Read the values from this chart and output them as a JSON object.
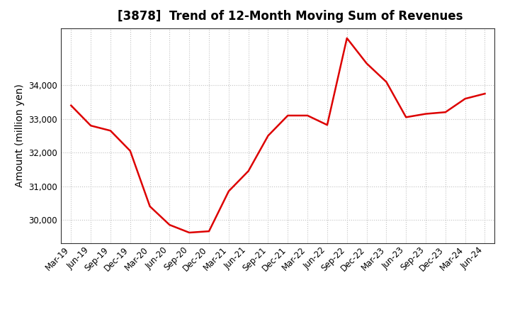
{
  "title": "[3878]  Trend of 12-Month Moving Sum of Revenues",
  "ylabel": "Amount (million yen)",
  "x_labels": [
    "Mar-19",
    "Jun-19",
    "Sep-19",
    "Dec-19",
    "Mar-20",
    "Jun-20",
    "Sep-20",
    "Dec-20",
    "Mar-21",
    "Jun-21",
    "Sep-21",
    "Dec-21",
    "Mar-22",
    "Jun-22",
    "Sep-22",
    "Dec-22",
    "Mar-23",
    "Jun-23",
    "Sep-23",
    "Dec-23",
    "Mar-24",
    "Jun-24"
  ],
  "values": [
    33400,
    32800,
    32650,
    32050,
    30400,
    29850,
    29620,
    29660,
    30850,
    31450,
    32500,
    33100,
    33100,
    32820,
    35400,
    34650,
    34100,
    33050,
    33150,
    33200,
    33600,
    33750
  ],
  "line_color": "#dd0000",
  "line_width": 1.8,
  "ylim_min": 29300,
  "ylim_max": 35700,
  "yticks": [
    30000,
    31000,
    32000,
    33000,
    34000
  ],
  "bg_color": "#ffffff",
  "plot_bg_color": "#ffffff",
  "grid_color": "#bbbbbb",
  "title_fontsize": 12,
  "label_fontsize": 10,
  "tick_fontsize": 8.5
}
